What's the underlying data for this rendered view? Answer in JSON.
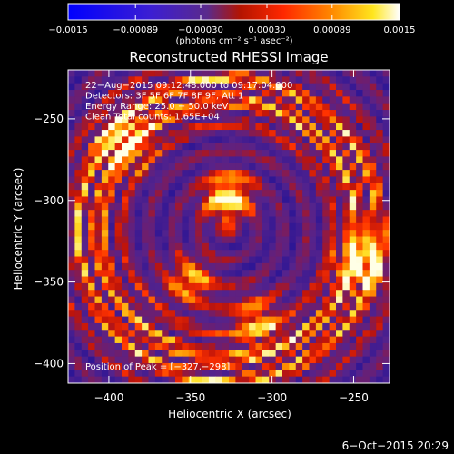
{
  "colorbar": {
    "ticks": [
      {
        "value": -0.0015,
        "label": "−0.0015"
      },
      {
        "value": -0.00089,
        "label": "−0.00089"
      },
      {
        "value": -0.0003,
        "label": "−0.00030"
      },
      {
        "value": 0.0003,
        "label": "0.00030"
      },
      {
        "value": 0.00089,
        "label": "0.00089"
      },
      {
        "value": 0.0015,
        "label": "0.0015"
      }
    ],
    "range": [
      -0.0015,
      0.0015
    ],
    "unit_label": "(photons cm⁻² s⁻¹ asec⁻²)"
  },
  "chart_data": {
    "type": "heatmap",
    "title": "Reconstructed RHESSI Image",
    "xlabel": "Heliocentric X (arcsec)",
    "ylabel": "Heliocentric Y (arcsec)",
    "xlim": [
      -425,
      -228
    ],
    "ylim": [
      -412,
      -220
    ],
    "xticks": [
      {
        "value": -400,
        "label": "−400"
      },
      {
        "value": -350,
        "label": "−350"
      },
      {
        "value": -300,
        "label": "−300"
      },
      {
        "value": -250,
        "label": "−250"
      }
    ],
    "yticks": [
      {
        "value": -250,
        "label": "−250"
      },
      {
        "value": -300,
        "label": "−300"
      },
      {
        "value": -350,
        "label": "−350"
      },
      {
        "value": -400,
        "label": "−400"
      }
    ],
    "colormap": "rhessi (blue-purple-red-yellow-white)",
    "peak_position": [
      -327,
      -298
    ],
    "sources": [
      {
        "x": -327,
        "y": -298,
        "relative_intensity": 1.0
      },
      {
        "x": -349,
        "y": -349,
        "relative_intensity": 0.75
      },
      {
        "x": -245,
        "y": -338,
        "relative_intensity": 0.7
      },
      {
        "x": -310,
        "y": -372,
        "relative_intensity": 0.65
      },
      {
        "x": -390,
        "y": -265,
        "relative_intensity": 0.6
      }
    ],
    "annotations": [
      "22−Aug−2015 09:12:48.000 to 09:17:04.000",
      "Detectors: 3F 5F 6F 7F 8F 9F, Att 1",
      "Energy Range: 25.0 − 50.0 keV",
      "Clean     Total counts: 1.65E+04"
    ],
    "peak_label": "Position of Peak = [−327,−298]"
  },
  "footer": {
    "date": "6−Oct−2015 20:29"
  }
}
